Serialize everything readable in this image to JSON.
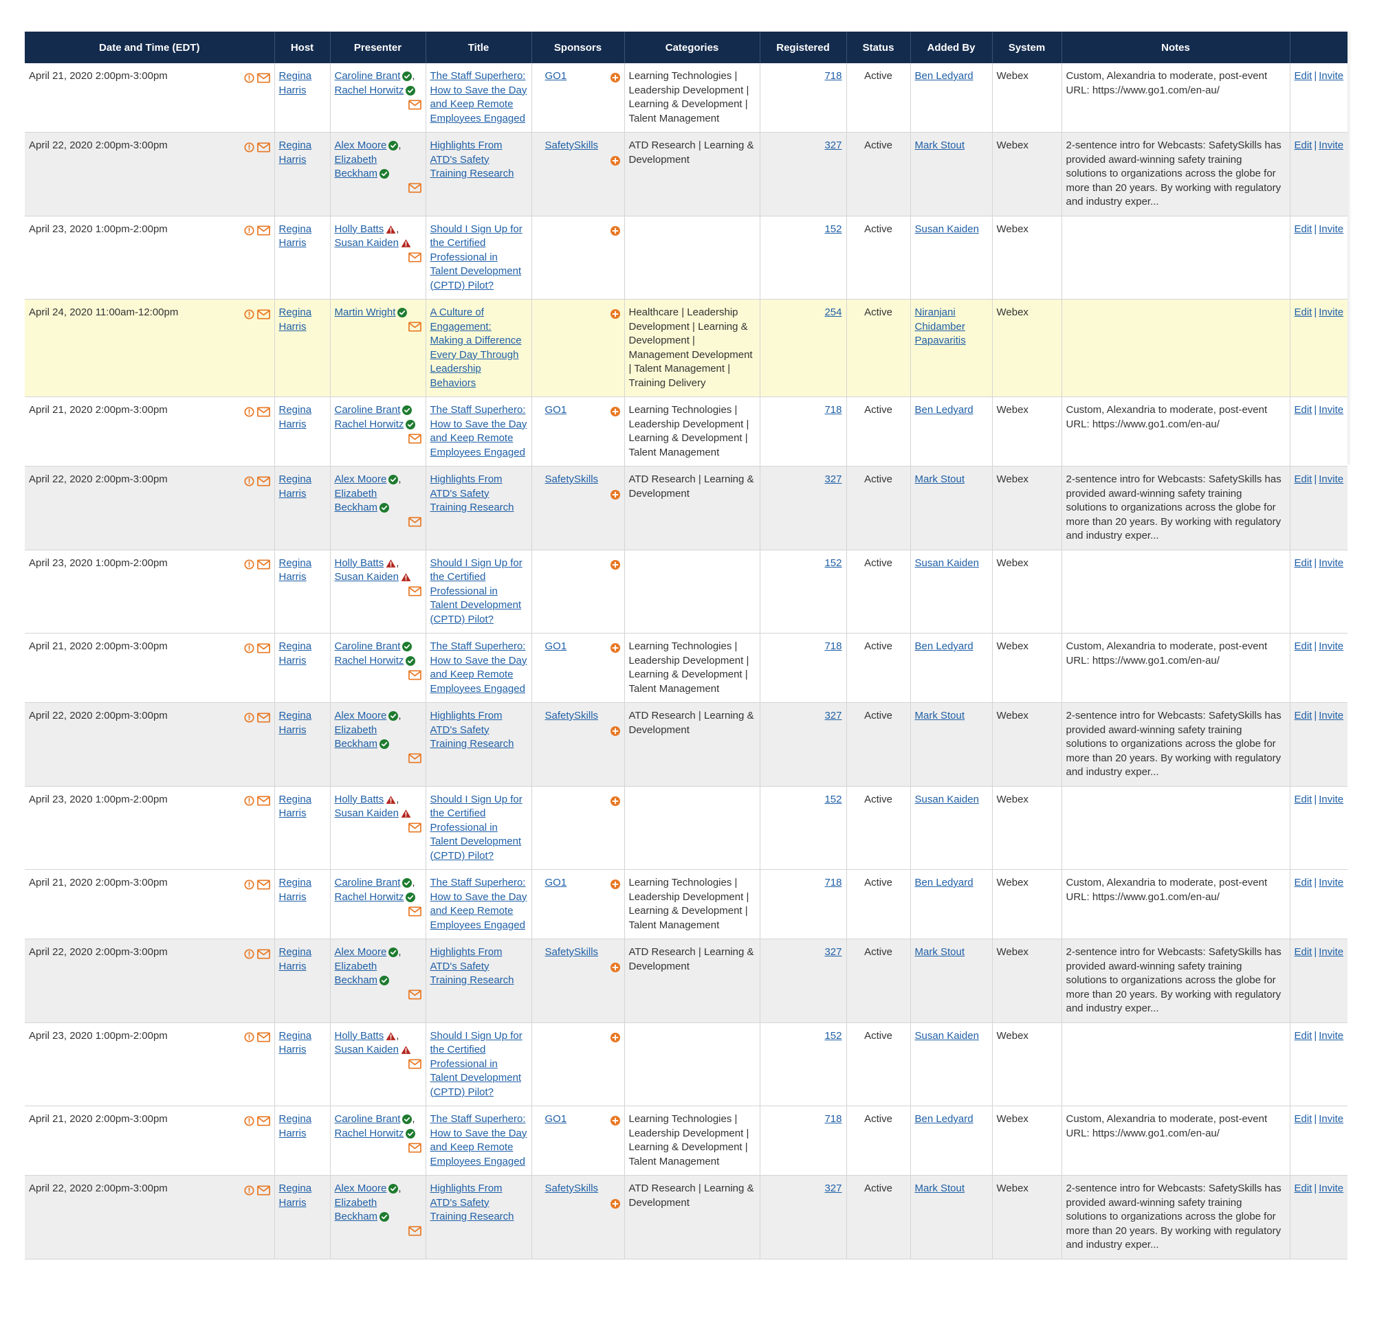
{
  "columns": [
    "Date and Time (EDT)",
    "Host",
    "Presenter",
    "Title",
    "Sponsors",
    "Categories",
    "Registered",
    "Status",
    "Added By",
    "System",
    "Notes",
    ""
  ],
  "colors": {
    "header_bg": "#132b4d",
    "link": "#1f5fa6",
    "ok_green": "#1e7b2f",
    "warn_red": "#b3261e",
    "accent_orange": "#e87722",
    "row_alt": "#eeeeee",
    "row_highlight": "#fcfad5"
  },
  "icons": {
    "clock": "clock-icon",
    "mail": "mail-icon",
    "verified": "check-circle-icon",
    "warning": "warning-triangle-icon",
    "add": "plus-circle-icon"
  },
  "rows": [
    {
      "datetime": "April 21, 2020 2:00pm-3:00pm",
      "style": "white",
      "host": [
        "Regina",
        "Harris"
      ],
      "presenters": [
        {
          "name": "Caroline Brant",
          "status": "ok",
          "comma": true
        },
        {
          "name": "Rachel Horwitz",
          "status": "ok",
          "comma": false
        }
      ],
      "title": "The Staff Superhero: How to Save the Day and Keep Remote Employees Engaged",
      "sponsor": "GO1",
      "sponsor_add_below": false,
      "categories": "Learning Technologies | Leadership Development | Learning & Development | Talent Management",
      "registered": "718",
      "status": "Active",
      "added_by": "Ben Ledyard",
      "system": "Webex",
      "notes": "Custom, Alexandria to moderate, post-event URL: https://www.go1.com/en-au/",
      "edit": "Edit",
      "invite": "Invite"
    },
    {
      "datetime": "April 22, 2020 2:00pm-3:00pm",
      "style": "gray",
      "host": [
        "Regina",
        "Harris"
      ],
      "presenters": [
        {
          "name": "Alex Moore",
          "status": "ok",
          "comma": true
        },
        {
          "name": "Elizabeth Beckham",
          "status": "ok",
          "comma": false
        }
      ],
      "title": "Highlights From ATD's Safety Training Research",
      "sponsor": "SafetySkills",
      "sponsor_add_below": true,
      "categories": "ATD Research | Learning & Development",
      "registered": "327",
      "status": "Active",
      "added_by": "Mark Stout",
      "system": "Webex",
      "notes": "2-sentence intro for Webcasts: SafetySkills has provided award-winning safety training solutions to organizations across the globe for more than 20 years. By working with regulatory and industry exper...",
      "edit": "Edit",
      "invite": "Invite"
    },
    {
      "datetime": "April 23, 2020 1:00pm-2:00pm",
      "style": "white",
      "host": [
        "Regina",
        "Harris"
      ],
      "presenters": [
        {
          "name": "Holly Batts",
          "status": "warn",
          "comma": true
        },
        {
          "name": "Susan Kaiden",
          "status": "warn",
          "comma": false
        }
      ],
      "title": "Should I Sign Up for the Certified Professional in Talent Development (CPTD) Pilot?",
      "sponsor": "",
      "sponsor_add_below": false,
      "categories": "",
      "registered": "152",
      "status": "Active",
      "added_by": "Susan Kaiden",
      "system": "Webex",
      "notes": "",
      "edit": "Edit",
      "invite": "Invite"
    },
    {
      "datetime": "April 24, 2020 11:00am-12:00pm",
      "style": "yellow",
      "host": [
        "Regina",
        "Harris"
      ],
      "presenters": [
        {
          "name": "Martin Wright",
          "status": "ok",
          "comma": false
        }
      ],
      "title": "A Culture of Engagement: Making a Difference Every Day Through Leadership Behaviors",
      "sponsor": "",
      "sponsor_add_below": false,
      "categories": "Healthcare | Leadership Development | Learning & Development | Management Development | Talent Management | Training Delivery",
      "registered": "254",
      "status": "Active",
      "added_by": "Niranjani Chidamber Papavaritis",
      "system": "Webex",
      "notes": "",
      "edit": "Edit",
      "invite": "Invite"
    },
    {
      "datetime": "April 21, 2020 2:00pm-3:00pm",
      "style": "white",
      "host": [
        "Regina",
        "Harris"
      ],
      "presenters": [
        {
          "name": "Caroline Brant",
          "status": "ok",
          "comma": false
        },
        {
          "name": "Rachel Horwitz",
          "status": "ok",
          "comma": false
        }
      ],
      "title": "The Staff Superhero: How to Save the Day and Keep Remote Employees Engaged",
      "sponsor": "GO1",
      "sponsor_add_below": false,
      "categories": "Learning Technologies | Leadership Development | Learning & Development | Talent Management",
      "registered": "718",
      "status": "Active",
      "added_by": "Ben Ledyard",
      "system": "Webex",
      "notes": "Custom, Alexandria to moderate, post-event URL: https://www.go1.com/en-au/",
      "edit": "Edit",
      "invite": "Invite"
    },
    {
      "datetime": "April 22, 2020 2:00pm-3:00pm",
      "style": "gray",
      "host": [
        "Regina",
        "Harris"
      ],
      "presenters": [
        {
          "name": "Alex Moore",
          "status": "ok",
          "comma": true
        },
        {
          "name": "Elizabeth Beckham",
          "status": "ok",
          "comma": false
        }
      ],
      "title": "Highlights From ATD's Safety Training Research",
      "sponsor": "SafetySkills",
      "sponsor_add_below": true,
      "categories": "ATD Research | Learning & Development",
      "registered": "327",
      "status": "Active",
      "added_by": "Mark Stout",
      "system": "Webex",
      "notes": "2-sentence intro for Webcasts: SafetySkills has provided award-winning safety training solutions to organizations across the globe for more than 20 years. By working with regulatory and industry exper...",
      "edit": "Edit",
      "invite": "Invite"
    },
    {
      "datetime": "April 23, 2020 1:00pm-2:00pm",
      "style": "white",
      "host": [
        "Regina",
        "Harris"
      ],
      "presenters": [
        {
          "name": "Holly Batts",
          "status": "warn",
          "comma": true
        },
        {
          "name": "Susan Kaiden",
          "status": "warn",
          "comma": false
        }
      ],
      "title": "Should I Sign Up for the Certified Professional in Talent Development (CPTD) Pilot?",
      "sponsor": "",
      "sponsor_add_below": false,
      "categories": "",
      "registered": "152",
      "status": "Active",
      "added_by": "Susan Kaiden",
      "system": "Webex",
      "notes": "",
      "edit": "Edit",
      "invite": "Invite"
    },
    {
      "datetime": "April 21, 2020 2:00pm-3:00pm",
      "style": "white",
      "host": [
        "Regina",
        "Harris"
      ],
      "presenters": [
        {
          "name": "Caroline Brant",
          "status": "ok",
          "comma": false
        },
        {
          "name": "Rachel Horwitz",
          "status": "ok",
          "comma": false
        }
      ],
      "title": "The Staff Superhero: How to Save the Day and Keep Remote Employees Engaged",
      "sponsor": "GO1",
      "sponsor_add_below": false,
      "categories": "Learning Technologies | Leadership Development | Learning & Development | Talent Management",
      "registered": "718",
      "status": "Active",
      "added_by": "Ben Ledyard",
      "system": "Webex",
      "notes": "Custom, Alexandria to moderate, post-event URL: https://www.go1.com/en-au/",
      "edit": "Edit",
      "invite": "Invite"
    },
    {
      "datetime": "April 22, 2020 2:00pm-3:00pm",
      "style": "gray",
      "host": [
        "Regina",
        "Harris"
      ],
      "presenters": [
        {
          "name": "Alex Moore",
          "status": "ok",
          "comma": true
        },
        {
          "name": "Elizabeth Beckham",
          "status": "ok",
          "comma": false
        }
      ],
      "title": "Highlights From ATD's Safety Training Research",
      "sponsor": "SafetySkills",
      "sponsor_add_below": true,
      "categories": "ATD Research | Learning & Development",
      "registered": "327",
      "status": "Active",
      "added_by": "Mark Stout",
      "system": "Webex",
      "notes": "2-sentence intro for Webcasts: SafetySkills has provided award-winning safety training solutions to organizations across the globe for more than 20 years. By working with regulatory and industry exper...",
      "edit": "Edit",
      "invite": "Invite"
    },
    {
      "datetime": "April 23, 2020 1:00pm-2:00pm",
      "style": "white",
      "host": [
        "Regina",
        "Harris"
      ],
      "presenters": [
        {
          "name": "Holly Batts",
          "status": "warn",
          "comma": true
        },
        {
          "name": "Susan Kaiden",
          "status": "warn",
          "comma": false
        }
      ],
      "title": "Should I Sign Up for the Certified Professional in Talent Development (CPTD) Pilot?",
      "sponsor": "",
      "sponsor_add_below": false,
      "categories": "",
      "registered": "152",
      "status": "Active",
      "added_by": "Susan Kaiden",
      "system": "Webex",
      "notes": "",
      "edit": "Edit",
      "invite": "Invite"
    },
    {
      "datetime": "April 21, 2020 2:00pm-3:00pm",
      "style": "white",
      "host": [
        "Regina",
        "Harris"
      ],
      "presenters": [
        {
          "name": "Caroline Brant",
          "status": "ok",
          "comma": true
        },
        {
          "name": "Rachel Horwitz",
          "status": "ok",
          "comma": false
        }
      ],
      "title": "The Staff Superhero: How to Save the Day and Keep Remote Employees Engaged",
      "sponsor": "GO1",
      "sponsor_add_below": false,
      "categories": "Learning Technologies | Leadership Development | Learning & Development | Talent Management",
      "registered": "718",
      "status": "Active",
      "added_by": "Ben Ledyard",
      "system": "Webex",
      "notes": "Custom, Alexandria to moderate, post-event URL: https://www.go1.com/en-au/",
      "edit": "Edit",
      "invite": "Invite"
    },
    {
      "datetime": "April 22, 2020 2:00pm-3:00pm",
      "style": "gray",
      "host": [
        "Regina",
        "Harris"
      ],
      "presenters": [
        {
          "name": "Alex Moore",
          "status": "ok",
          "comma": true
        },
        {
          "name": "Elizabeth Beckham",
          "status": "ok",
          "comma": false
        }
      ],
      "title": "Highlights From ATD's Safety Training Research",
      "sponsor": "SafetySkills",
      "sponsor_add_below": true,
      "categories": "ATD Research | Learning & Development",
      "registered": "327",
      "status": "Active",
      "added_by": "Mark Stout",
      "system": "Webex",
      "notes": "2-sentence intro for Webcasts: SafetySkills has provided award-winning safety training solutions to organizations across the globe for more than 20 years. By working with regulatory and industry exper...",
      "edit": "Edit",
      "invite": "Invite"
    },
    {
      "datetime": "April 23, 2020 1:00pm-2:00pm",
      "style": "white",
      "host": [
        "Regina",
        "Harris"
      ],
      "presenters": [
        {
          "name": "Holly Batts",
          "status": "warn",
          "comma": true
        },
        {
          "name": "Susan Kaiden",
          "status": "warn",
          "comma": false
        }
      ],
      "title": "Should I Sign Up for the Certified Professional in Talent Development (CPTD) Pilot?",
      "sponsor": "",
      "sponsor_add_below": false,
      "categories": "",
      "registered": "152",
      "status": "Active",
      "added_by": "Susan Kaiden",
      "system": "Webex",
      "notes": "",
      "edit": "Edit",
      "invite": "Invite"
    },
    {
      "datetime": "April 21, 2020 2:00pm-3:00pm",
      "style": "white",
      "host": [
        "Regina",
        "Harris"
      ],
      "presenters": [
        {
          "name": "Caroline Brant",
          "status": "ok",
          "comma": true
        },
        {
          "name": "Rachel Horwitz",
          "status": "ok",
          "comma": false
        }
      ],
      "title": "The Staff Superhero: How to Save the Day and Keep Remote Employees Engaged",
      "sponsor": "GO1",
      "sponsor_add_below": false,
      "categories": "Learning Technologies | Leadership Development | Learning & Development | Talent Management",
      "registered": "718",
      "status": "Active",
      "added_by": "Ben Ledyard",
      "system": "Webex",
      "notes": "Custom, Alexandria to moderate, post-event URL: https://www.go1.com/en-au/",
      "edit": "Edit",
      "invite": "Invite"
    },
    {
      "datetime": "April 22, 2020 2:00pm-3:00pm",
      "style": "gray",
      "host": [
        "Regina",
        "Harris"
      ],
      "presenters": [
        {
          "name": "Alex Moore",
          "status": "ok",
          "comma": true
        },
        {
          "name": "Elizabeth Beckham",
          "status": "ok",
          "comma": false
        }
      ],
      "title": "Highlights From ATD's Safety Training Research",
      "sponsor": "SafetySkills",
      "sponsor_add_below": true,
      "categories": "ATD Research | Learning & Development",
      "registered": "327",
      "status": "Active",
      "added_by": "Mark Stout",
      "system": "Webex",
      "notes": "2-sentence intro for Webcasts: SafetySkills has provided award-winning safety training solutions to organizations across the globe for more than 20 years. By working with regulatory and industry exper...",
      "edit": "Edit",
      "invite": "Invite"
    }
  ]
}
